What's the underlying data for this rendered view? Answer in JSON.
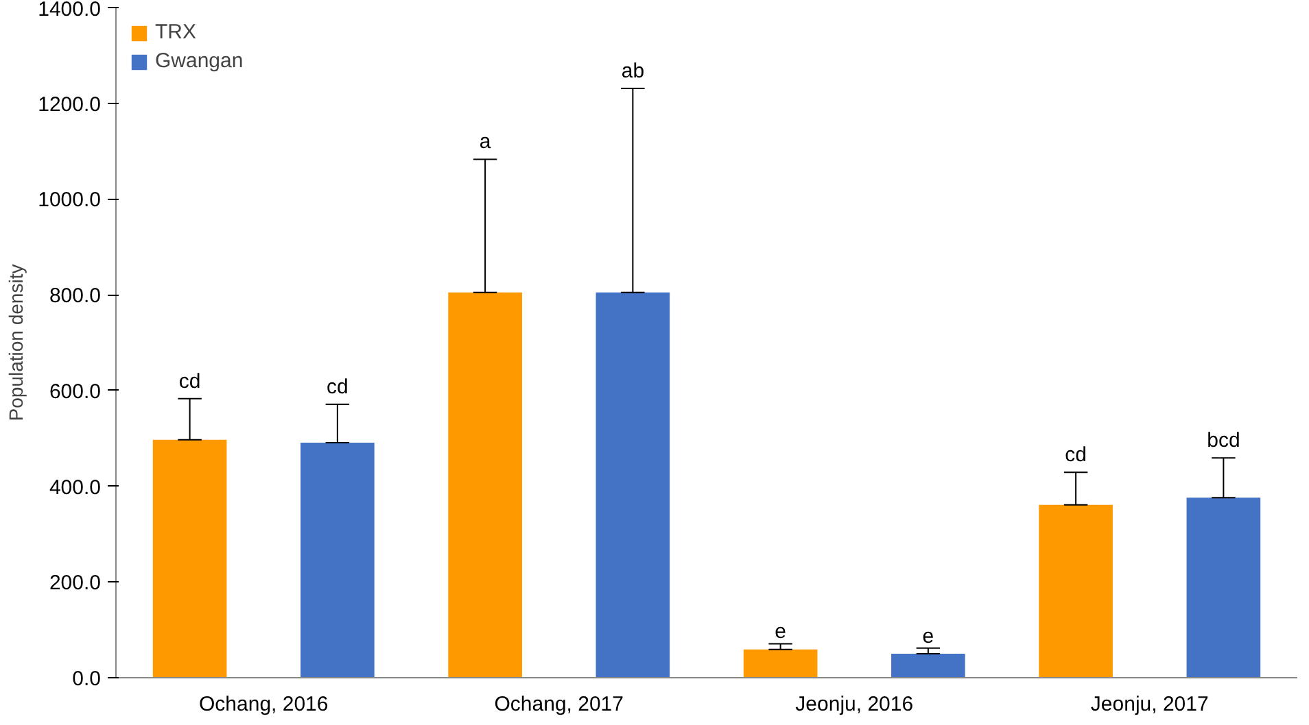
{
  "chart_data": {
    "type": "bar",
    "ylabel": "Population density",
    "categories": [
      "Ochang, 2016",
      "Ochang, 2017",
      "Jeonju, 2016",
      "Jeonju, 2017"
    ],
    "series": [
      {
        "name": "TRX",
        "color": "#ff9900",
        "values": [
          497,
          805,
          59,
          361
        ],
        "errors": [
          [
            497,
            583
          ],
          [
            805,
            1083
          ],
          [
            59,
            71
          ],
          [
            361,
            429
          ]
        ]
      },
      {
        "name": "Gwangan",
        "color": "#4472c4",
        "values": [
          491,
          805,
          50,
          376
        ],
        "errors": [
          [
            491,
            571
          ],
          [
            805,
            1231
          ],
          [
            50,
            62
          ],
          [
            376,
            459
          ]
        ]
      }
    ],
    "ylim": [
      0,
      1400
    ],
    "yticks": [
      {
        "value": 0,
        "label": "0.0"
      },
      {
        "value": 200,
        "label": "200.0"
      },
      {
        "value": 400,
        "label": "400.0"
      },
      {
        "value": 600,
        "label": "600.0"
      },
      {
        "value": 800,
        "label": "800.0"
      },
      {
        "value": 1000,
        "label": "1000.0"
      },
      {
        "value": 1200,
        "label": "1200.0"
      },
      {
        "value": 1400,
        "label": "1400.0"
      }
    ],
    "annotations": [
      "cd",
      "cd",
      "a",
      "ab",
      "e",
      "e",
      "cd",
      "bcd"
    ],
    "grid": false,
    "legend": "top left"
  }
}
